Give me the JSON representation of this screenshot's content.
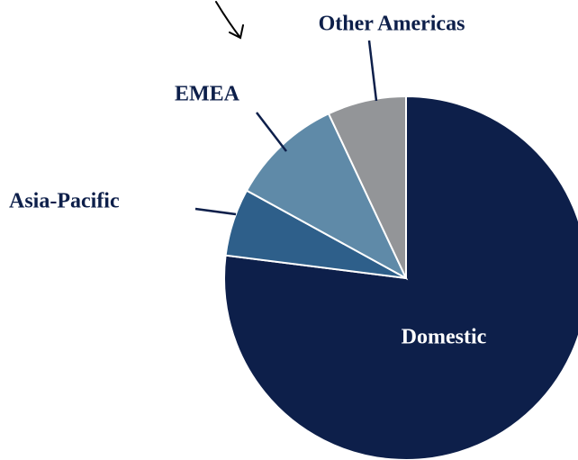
{
  "chart_data": {
    "type": "pie",
    "categories": [
      "Domestic",
      "Asia-Pacific",
      "EMEA",
      "Other Americas"
    ],
    "values": [
      77,
      6,
      10,
      7
    ],
    "colors": [
      "#0d1f4a",
      "#2e5f8a",
      "#5f8aa8",
      "#939598"
    ]
  }
}
